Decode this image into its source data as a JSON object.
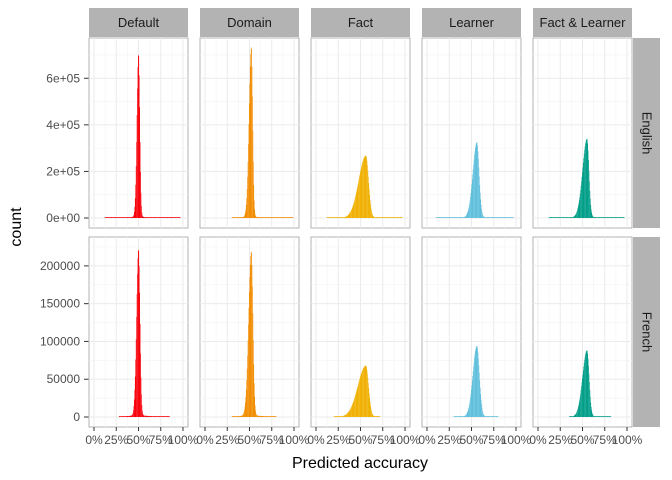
{
  "chart_data": {
    "type": "histogram-facet",
    "xlabel": "Predicted accuracy",
    "ylabel": "count",
    "x_ticks": [
      "0%",
      "25%",
      "50%",
      "75%",
      "100%"
    ],
    "x_range": [
      0,
      1
    ],
    "columns": [
      "Default",
      "Domain",
      "Fact",
      "Learner",
      "Fact & Learner"
    ],
    "colors": [
      "#f8000a",
      "#f28c00",
      "#f0b000",
      "#5fbfdc",
      "#009e88"
    ],
    "rows": [
      {
        "label": "English",
        "y_range": [
          0,
          730000
        ],
        "y_ticks": [
          0,
          200000,
          400000,
          600000
        ],
        "y_tick_labels": [
          "0e+00",
          "2e+05",
          "4e+05",
          "6e+05"
        ],
        "series": [
          {
            "peak_x": 0.5,
            "peak": 700000,
            "sd_left": 0.018,
            "sd_right": 0.014,
            "tail": 6000,
            "range": [
              0.12,
              0.97
            ]
          },
          {
            "peak_x": 0.52,
            "peak": 730000,
            "sd_left": 0.025,
            "sd_right": 0.015,
            "tail": 6000,
            "range": [
              0.3,
              0.99
            ]
          },
          {
            "peak_x": 0.56,
            "peak": 265000,
            "sd_left": 0.08,
            "sd_right": 0.03,
            "tail": 3000,
            "range": [
              0.12,
              0.97
            ]
          },
          {
            "peak_x": 0.56,
            "peak": 320000,
            "sd_left": 0.045,
            "sd_right": 0.025,
            "tail": 5000,
            "range": [
              0.1,
              0.97
            ]
          },
          {
            "peak_x": 0.55,
            "peak": 335000,
            "sd_left": 0.05,
            "sd_right": 0.022,
            "tail": 5000,
            "range": [
              0.12,
              0.97
            ]
          }
        ]
      },
      {
        "label": "French",
        "y_range": [
          0,
          225000
        ],
        "y_ticks": [
          0,
          50000,
          100000,
          150000,
          200000
        ],
        "y_tick_labels": [
          "0",
          "50000",
          "100000",
          "150000",
          "200000"
        ],
        "series": [
          {
            "peak_x": 0.5,
            "peak": 220000,
            "sd_left": 0.022,
            "sd_right": 0.016,
            "tail": 2500,
            "range": [
              0.28,
              0.85
            ]
          },
          {
            "peak_x": 0.52,
            "peak": 217000,
            "sd_left": 0.03,
            "sd_right": 0.018,
            "tail": 2500,
            "range": [
              0.3,
              0.8
            ]
          },
          {
            "peak_x": 0.56,
            "peak": 67000,
            "sd_left": 0.09,
            "sd_right": 0.03,
            "tail": 1000,
            "range": [
              0.2,
              0.72
            ]
          },
          {
            "peak_x": 0.56,
            "peak": 93000,
            "sd_left": 0.045,
            "sd_right": 0.028,
            "tail": 1200,
            "range": [
              0.3,
              0.8
            ]
          },
          {
            "peak_x": 0.55,
            "peak": 87000,
            "sd_left": 0.05,
            "sd_right": 0.024,
            "tail": 1200,
            "range": [
              0.35,
              0.82
            ]
          }
        ]
      }
    ]
  }
}
